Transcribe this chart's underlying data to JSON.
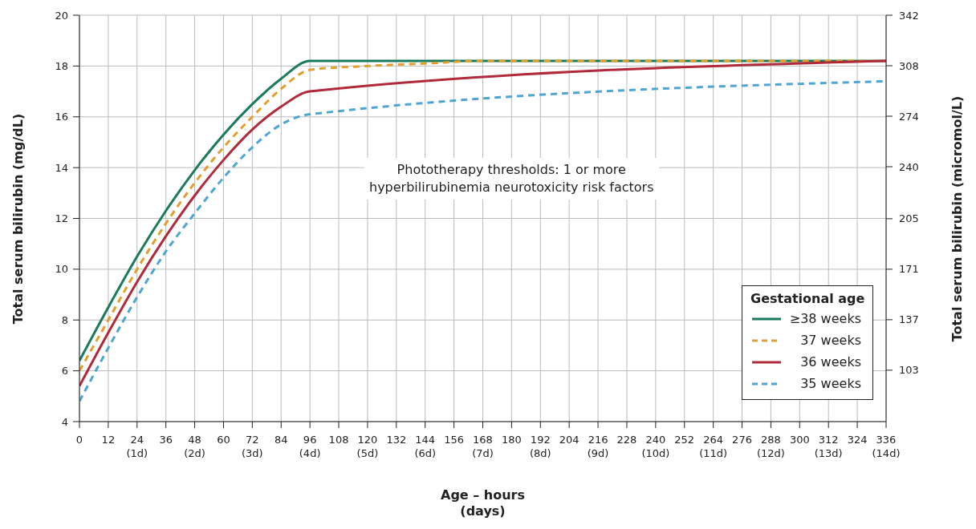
{
  "chart_data": {
    "type": "line",
    "xlabel": "Age – hours\n(days)",
    "ylabel": "Total serum bilirubin (mg/dL)",
    "y2label": "Total serum bilirubin (micromol/L)",
    "legend_title": "Gestational age",
    "annotations": [
      "Phototherapy thresholds: 1 or more\nhyperbilirubinemia neurotoxicity risk factors"
    ],
    "series": [
      {
        "name": "≥38 weeks",
        "color": "#1a7a5e",
        "line_style": "solid",
        "x": [
          0,
          12,
          24,
          36,
          48,
          60,
          72,
          84,
          96,
          336
        ],
        "values": [
          6.4,
          8.5,
          10.5,
          12.3,
          13.9,
          15.3,
          16.5,
          17.5,
          18.2,
          18.2
        ]
      },
      {
        "name": "37 weeks",
        "color": "#e0a030",
        "line_style": "dashed",
        "x": [
          0,
          12,
          24,
          36,
          48,
          60,
          72,
          84,
          96,
          120,
          144,
          168,
          336
        ],
        "values": [
          6.0,
          8.0,
          10.0,
          11.8,
          13.4,
          14.8,
          16.0,
          17.1,
          17.85,
          18.0,
          18.1,
          18.2,
          18.2
        ]
      },
      {
        "name": "36 weeks",
        "color": "#b02a3a",
        "line_style": "solid",
        "x": [
          0,
          12,
          24,
          36,
          48,
          60,
          72,
          84,
          96,
          336
        ],
        "values": [
          5.4,
          7.5,
          9.5,
          11.3,
          12.9,
          14.3,
          15.5,
          16.4,
          17.0,
          18.2
        ]
      },
      {
        "name": "35 weeks",
        "color": "#4ea6d0",
        "line_style": "dashed",
        "x": [
          0,
          12,
          24,
          36,
          48,
          60,
          72,
          84,
          96,
          336
        ],
        "values": [
          4.8,
          6.9,
          8.9,
          10.7,
          12.2,
          13.6,
          14.8,
          15.7,
          16.1,
          17.4
        ]
      }
    ],
    "xlim": [
      0,
      336
    ],
    "xticks": [
      0,
      12,
      {
        "value": 24,
        "label": "24\n(1d)"
      },
      36,
      {
        "value": 48,
        "label": "48\n(2d)"
      },
      60,
      {
        "value": 72,
        "label": "72\n(3d)"
      },
      84,
      {
        "value": 96,
        "label": "96\n(4d)"
      },
      108,
      {
        "value": 120,
        "label": "120\n(5d)"
      },
      132,
      {
        "value": 144,
        "label": "144\n(6d)"
      },
      156,
      {
        "value": 168,
        "label": "168\n(7d)"
      },
      180,
      {
        "value": 192,
        "label": "192\n(8d)"
      },
      204,
      {
        "value": 216,
        "label": "216\n(9d)"
      },
      228,
      {
        "value": 240,
        "label": "240\n(10d)"
      },
      252,
      {
        "value": 264,
        "label": "264\n(11d)"
      },
      276,
      {
        "value": 288,
        "label": "288\n(12d)"
      },
      300,
      {
        "value": 312,
        "label": "312\n(13d)"
      },
      324,
      {
        "value": 336,
        "label": "336\n(14d)"
      }
    ],
    "ylim": [
      4,
      20
    ],
    "yticks": [
      4,
      6,
      8,
      10,
      12,
      14,
      16,
      18,
      20
    ],
    "y2lim": [
      68.4,
      342
    ],
    "y2ticks": [
      103,
      137,
      171,
      205,
      240,
      274,
      308,
      342
    ],
    "grid": true,
    "legend": "bottom right",
    "marker": "none"
  }
}
